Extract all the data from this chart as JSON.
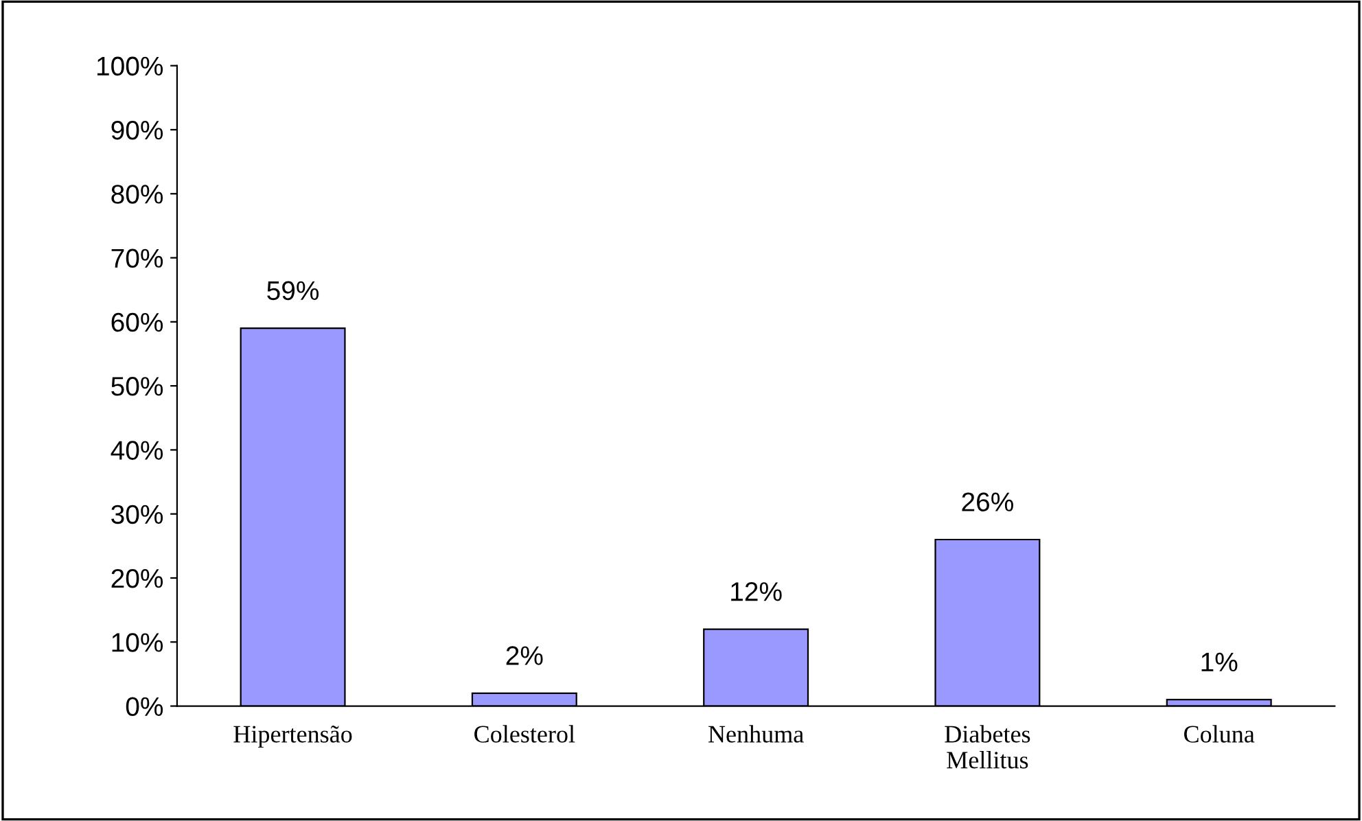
{
  "chart_data": {
    "type": "bar",
    "categories": [
      "Hipertensão",
      "Colesterol",
      "Nenhuma",
      "Diabetes\nMellitus",
      "Coluna"
    ],
    "values": [
      59,
      2,
      12,
      26,
      1
    ],
    "value_labels": [
      "59%",
      "2%",
      "12%",
      "26%",
      "1%"
    ],
    "color": "#9999ff",
    "ylim": [
      0,
      100
    ],
    "yticks": [
      {
        "value": 0,
        "label": "0%"
      },
      {
        "value": 10,
        "label": "10%"
      },
      {
        "value": 20,
        "label": "20%"
      },
      {
        "value": 30,
        "label": "30%"
      },
      {
        "value": 40,
        "label": "40%"
      },
      {
        "value": 50,
        "label": "50%"
      },
      {
        "value": 60,
        "label": "60%"
      },
      {
        "value": 70,
        "label": "70%"
      },
      {
        "value": 80,
        "label": "80%"
      },
      {
        "value": 90,
        "label": "90%"
      },
      {
        "value": 100,
        "label": "100%"
      }
    ],
    "grid": false,
    "legend": false
  }
}
